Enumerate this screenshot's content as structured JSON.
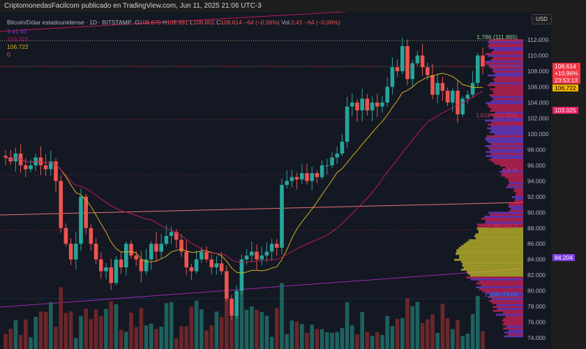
{
  "header": {
    "published": "CriptomonedasFacilcom publicado en TradingView.com, Jun 11, 2025 21:06 UTC-3"
  },
  "legend": {
    "symbol": "Bitcoin/Dólar estadounidense · 1D · BITSTAMP",
    "o_label": "O",
    "o": "108.670",
    "h_label": "H",
    "h": "108.691",
    "l_label": "L",
    "l": "108.602",
    "c_label": "C",
    "c": "108.614",
    "change": "−64 (−0,06%)",
    "vol_label": "Vol.",
    "vol": "0,41",
    "vol_change": "−64 (−0,06%)",
    "ind1": "3  41  80",
    "ind2": "103.025",
    "ind3": "106.722",
    "ind4": "0"
  },
  "currency": "USD",
  "badges": {
    "last_price": "108.614",
    "last_change": "+10,96%",
    "countdown": "23:53:13",
    "ma_fast": "106.722",
    "ma_slow": "103.025",
    "poc": "84.204"
  },
  "fib_labels": [
    {
      "text": "1,786 (111.865)",
      "price": 111.865,
      "color": "#8fd18f"
    },
    {
      "text": "1,618 (101.826)",
      "price": 101.826,
      "color": "#d0345f"
    },
    {
      "text": "1,5 (9",
      "price": 94.8,
      "color": "#9c3fb0"
    },
    {
      "text": "1,382 (87.7",
      "price": 87.75,
      "color": "#d0345f"
    },
    {
      "text": "1,236 (79.00",
      "price": 79.0,
      "color": "#2f80c8"
    }
  ],
  "colors": {
    "up": "#26a69a",
    "down": "#ef5350",
    "ma_fast": "#d4b21c",
    "ma_slow": "#c2185b",
    "bg": "#141823",
    "profile_up": "#7b3fe4",
    "profile_down": "#e0245e",
    "value_area": "#c9c12a"
  },
  "chart_data": {
    "type": "candlestick",
    "title": "Bitcoin/Dólar estadounidense · 1D · BITSTAMP",
    "ylim": [
      74,
      112.5
    ],
    "yticks": [
      "112.000",
      "110.000",
      "108.000",
      "106.000",
      "104.000",
      "102.000",
      "100.000",
      "98.000",
      "96.000",
      "94.000",
      "92.000",
      "90.000",
      "88.000",
      "86.000",
      "84.000",
      "82.000",
      "80.000",
      "78.000",
      "76.000",
      "74.000"
    ],
    "first_open": 97.2,
    "closes": [
      97,
      96.5,
      97.5,
      96,
      95.5,
      96,
      97,
      96,
      95.5,
      96.5,
      94,
      88,
      86,
      84,
      86,
      92,
      88,
      86,
      84,
      82.5,
      83,
      81,
      84,
      83,
      86,
      84.5,
      84,
      82.5,
      84,
      86,
      85,
      86,
      87,
      87.5,
      86.5,
      85,
      83,
      82.5,
      84,
      85,
      84,
      83,
      83.5,
      82.5,
      79,
      76.8,
      80,
      84,
      84.5,
      85,
      84,
      84.5,
      85,
      86,
      85.5,
      93.5,
      94,
      94.5,
      94.2,
      95,
      94,
      95,
      94.5,
      96,
      96,
      97,
      97.5,
      99,
      103.5,
      104,
      103,
      104.5,
      103,
      104,
      103.5,
      104,
      106,
      108.5,
      108,
      111.2,
      107,
      109,
      110,
      108.5,
      107.5,
      105,
      106.5,
      105.5,
      104,
      105.5,
      102.5,
      104.5,
      105,
      106.5,
      110,
      108.614
    ],
    "grid": false
  }
}
